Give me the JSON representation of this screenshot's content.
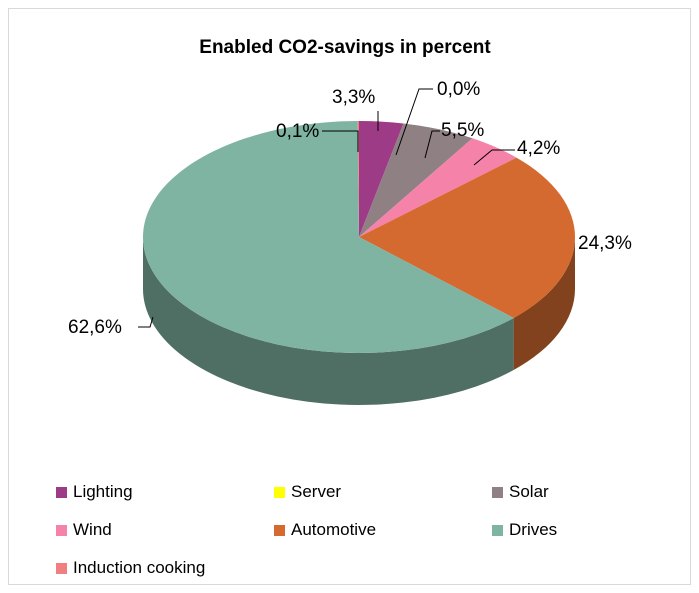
{
  "chart_data": {
    "type": "pie",
    "title": "Enabled CO2-savings in percent",
    "series": [
      {
        "name": "Lighting",
        "label": "3,3%",
        "value": 3.3,
        "color": "#9e3b86"
      },
      {
        "name": "Server",
        "label": "0,0%",
        "value": 0.0,
        "color": "#ffff00"
      },
      {
        "name": "Solar",
        "label": "5,5%",
        "value": 5.5,
        "color": "#8f8084"
      },
      {
        "name": "Wind",
        "label": "4,2%",
        "value": 4.2,
        "color": "#f582a8"
      },
      {
        "name": "Automotive",
        "label": "24,3%",
        "value": 24.3,
        "color": "#d46a30"
      },
      {
        "name": "Drives",
        "label": "62,6%",
        "value": 62.6,
        "color": "#7fb3a2"
      },
      {
        "name": "Induction cooking",
        "label": "0,1%",
        "value": 0.1,
        "color": "#f08080"
      }
    ],
    "legend_position": "bottom"
  }
}
